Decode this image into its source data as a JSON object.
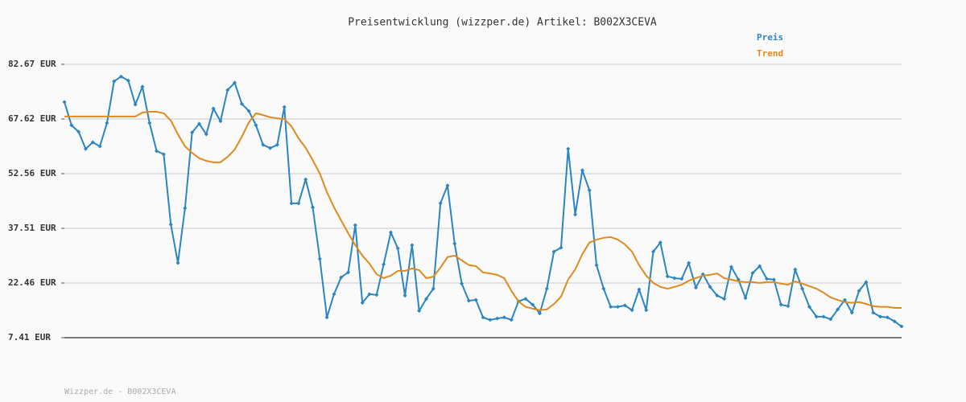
{
  "chart_data": {
    "type": "line",
    "title": "Preisentwicklung (wizzper.de) Artikel: B002X3CEVA",
    "footer": "Wizzper.de - B002X3CEVA",
    "ylim": [
      7.41,
      82.67
    ],
    "yticks": [
      {
        "value": 7.41,
        "label": "7.41 EUR"
      },
      {
        "value": 22.46,
        "label": "22.46 EUR"
      },
      {
        "value": 37.51,
        "label": "37.51 EUR"
      },
      {
        "value": 52.56,
        "label": "52.56 EUR"
      },
      {
        "value": 67.62,
        "label": "67.62 EUR"
      },
      {
        "value": 82.67,
        "label": "82.67 EUR"
      }
    ],
    "grid": true,
    "legend": "top-right",
    "series": [
      {
        "name": "Preis",
        "color": "#2a85c0",
        "markers": true,
        "values": [
          72.3,
          65.9,
          64.1,
          59.4,
          61.2,
          60.1,
          66.5,
          78.0,
          79.3,
          78.2,
          71.6,
          76.5,
          66.5,
          58.8,
          57.9,
          38.6,
          28.0,
          43.1,
          63.9,
          66.3,
          63.4,
          70.5,
          67.0,
          75.6,
          77.6,
          71.8,
          69.8,
          65.9,
          60.5,
          59.6,
          60.5,
          70.9,
          44.4,
          44.4,
          51.0,
          43.3,
          29.1,
          13.0,
          19.4,
          24.0,
          25.4,
          38.4,
          17.0,
          19.4,
          19.2,
          27.6,
          36.4,
          32.0,
          19.0,
          32.9,
          14.8,
          18.1,
          20.9,
          44.4,
          49.3,
          33.3,
          22.3,
          17.6,
          17.8,
          13.0,
          12.3,
          12.7,
          13.0,
          12.3,
          17.4,
          18.1,
          16.5,
          14.1,
          20.9,
          31.1,
          32.2,
          59.4,
          41.3,
          53.5,
          48.0,
          27.4,
          20.9,
          15.9,
          15.9,
          16.3,
          15.0,
          20.7,
          15.0,
          31.1,
          33.6,
          24.3,
          23.8,
          23.6,
          28.0,
          21.2,
          24.9,
          21.4,
          19.0,
          18.1,
          26.9,
          23.4,
          18.3,
          25.2,
          27.1,
          23.6,
          23.4,
          16.5,
          16.1,
          26.2,
          20.9,
          15.9,
          13.2,
          13.2,
          12.5,
          15.2,
          17.8,
          14.3,
          20.3,
          22.7,
          14.3,
          13.2,
          13.0,
          11.9,
          10.5
        ]
      },
      {
        "name": "Trend",
        "color": "#e08a1e",
        "markers": false,
        "values": [
          68.3,
          68.3,
          68.3,
          68.3,
          68.3,
          68.3,
          68.3,
          68.3,
          68.3,
          68.3,
          68.3,
          69.4,
          69.6,
          69.6,
          69.2,
          67.2,
          63.4,
          60.1,
          58.3,
          56.8,
          56.1,
          55.7,
          55.7,
          57.2,
          59.2,
          62.7,
          66.7,
          69.2,
          68.7,
          68.1,
          67.8,
          67.6,
          65.6,
          62.3,
          59.7,
          56.3,
          52.6,
          47.5,
          43.3,
          39.7,
          36.2,
          32.9,
          30.0,
          27.8,
          24.9,
          23.8,
          24.5,
          25.8,
          25.8,
          26.5,
          26.0,
          23.8,
          24.2,
          26.7,
          29.6,
          30.0,
          28.7,
          27.4,
          27.1,
          25.4,
          25.1,
          24.7,
          23.8,
          20.3,
          17.4,
          15.9,
          15.4,
          15.0,
          15.2,
          16.7,
          18.7,
          23.4,
          26.2,
          30.4,
          33.6,
          34.4,
          34.9,
          35.1,
          34.4,
          33.1,
          31.1,
          27.4,
          24.5,
          22.5,
          21.4,
          20.9,
          21.4,
          22.0,
          23.1,
          23.8,
          24.5,
          24.7,
          25.1,
          23.8,
          23.4,
          22.9,
          22.7,
          22.7,
          22.5,
          22.7,
          22.7,
          22.3,
          22.0,
          22.9,
          22.3,
          21.6,
          20.9,
          19.8,
          18.5,
          17.8,
          17.2,
          17.0,
          17.2,
          16.7,
          16.1,
          15.9,
          15.9,
          15.6,
          15.6
        ]
      }
    ]
  }
}
